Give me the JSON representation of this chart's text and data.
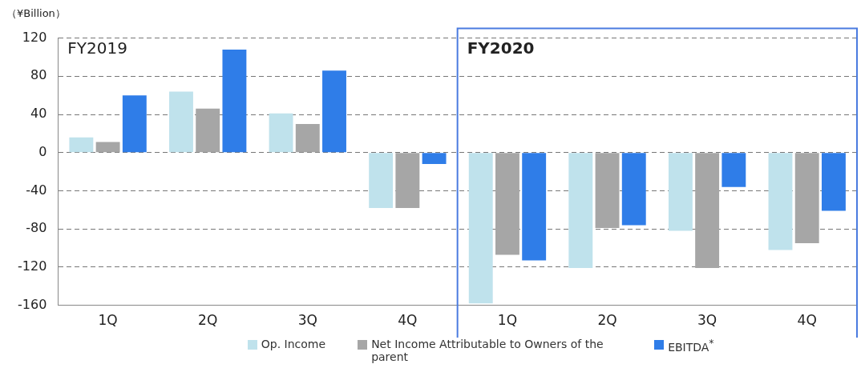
{
  "chart_data": {
    "type": "bar",
    "ylabel": "（¥Billion）",
    "categories": [
      "1Q",
      "2Q",
      "3Q",
      "4Q",
      "1Q",
      "2Q",
      "3Q",
      "4Q"
    ],
    "series": [
      {
        "name": "Op. Income",
        "color": "#bfe2ec",
        "values": [
          16,
          64,
          41,
          -58,
          -158,
          -121,
          -82,
          -102
        ]
      },
      {
        "name": "Net Income Attributable to Owners of the parent",
        "color": "#a6a6a6",
        "values": [
          11,
          46,
          30,
          -58,
          -107,
          -79,
          -121,
          -95
        ]
      },
      {
        "name": "EBITDA$^{*}$",
        "color": "#2f7de8",
        "values": [
          60,
          108,
          86,
          -12,
          -113,
          -76,
          -36,
          -61
        ]
      }
    ],
    "annotations": [
      "FY2019",
      "FY2020"
    ],
    "ylim": [
      -160,
      120
    ],
    "yticks": [
      -160,
      -120,
      -80,
      -40,
      0,
      40,
      80,
      120
    ],
    "grid": "y",
    "legend": "bottom"
  }
}
